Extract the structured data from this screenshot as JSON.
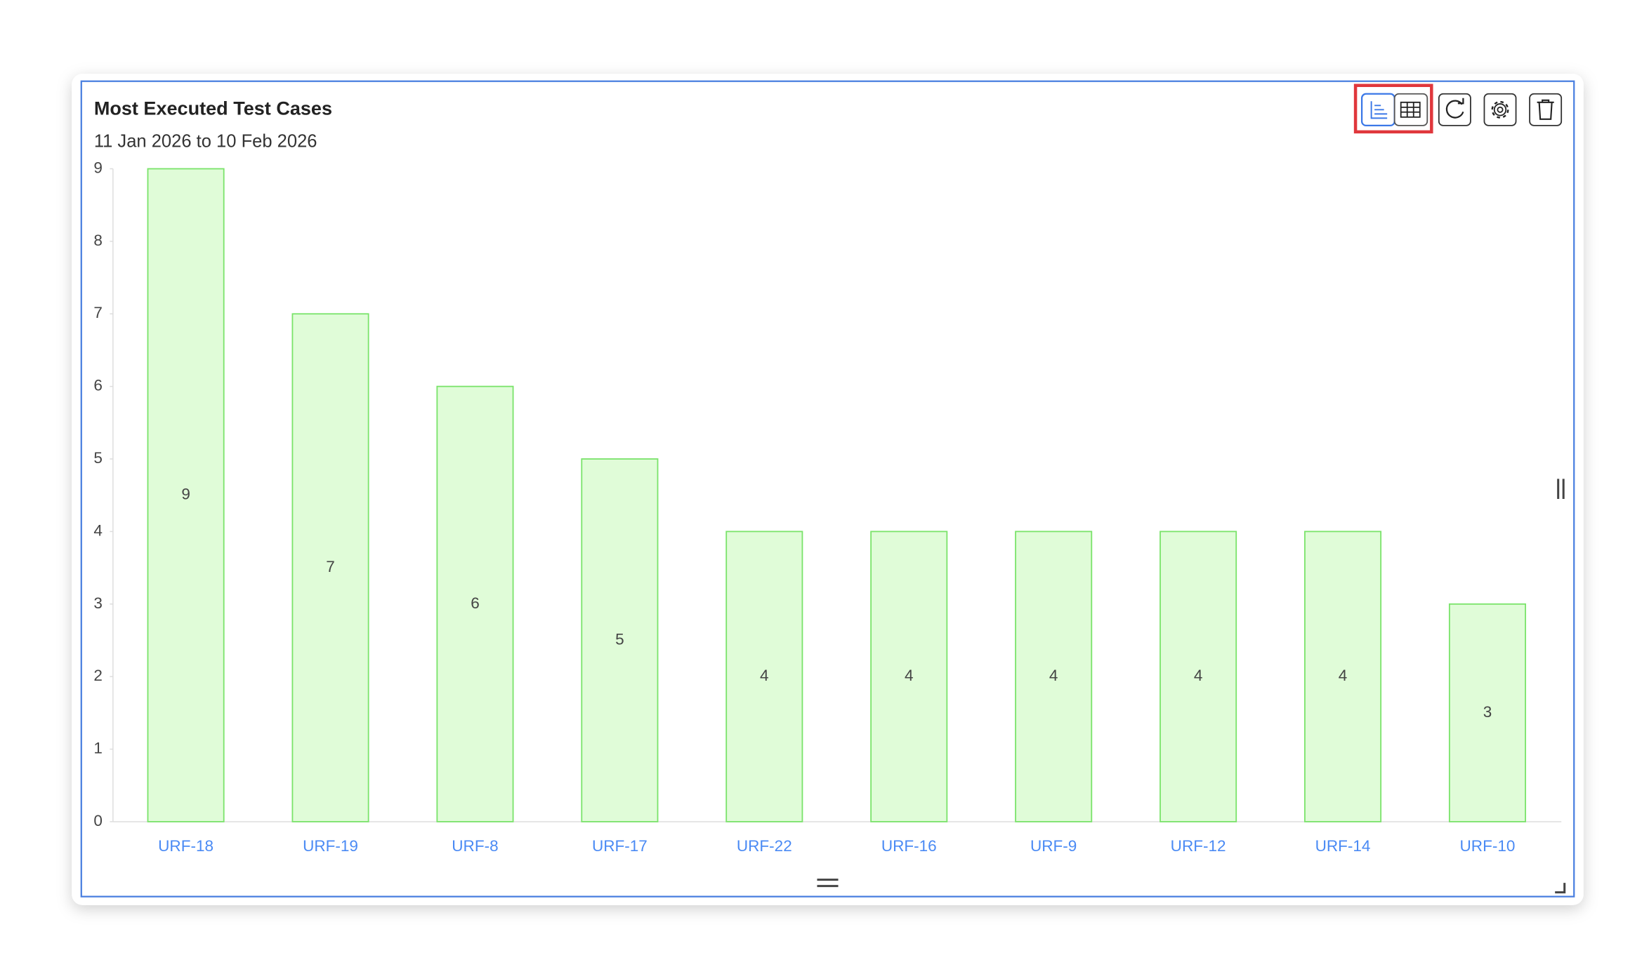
{
  "chart_data": {
    "type": "bar",
    "title": "Most Executed Test Cases",
    "subtitle": "11 Jan 2026 to 10 Feb 2026",
    "categories": [
      "URF-18",
      "URF-19",
      "URF-8",
      "URF-17",
      "URF-22",
      "URF-16",
      "URF-9",
      "URF-12",
      "URF-14",
      "URF-10"
    ],
    "values": [
      9,
      7,
      6,
      5,
      4,
      4,
      4,
      4,
      4,
      3
    ],
    "color": "#e0fcd8",
    "ylim": [
      0,
      9
    ],
    "yticks": [
      0,
      1,
      2,
      3,
      4,
      5,
      6,
      7,
      8,
      9
    ]
  }
}
